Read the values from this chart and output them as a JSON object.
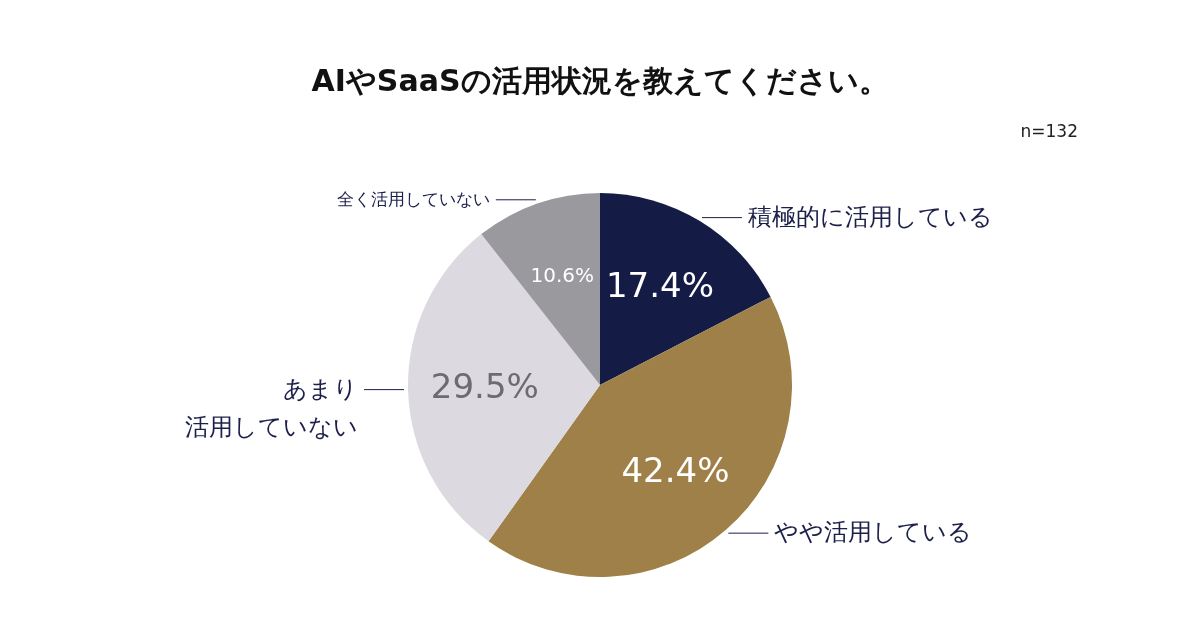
{
  "chart_data": {
    "type": "pie",
    "title": "AIやSaaSの活用状況を教えてください。",
    "annotations": [
      "n=132"
    ],
    "categories": [
      "積極的に活用している",
      "やや活用している",
      "あまり活用していない",
      "全く活用していない"
    ],
    "values": [
      17.4,
      42.4,
      29.5,
      10.6
    ],
    "value_labels": [
      "17.4%",
      "42.4%",
      "29.5%",
      "10.6%"
    ],
    "colors": [
      "#141c45",
      "#9e8048",
      "#dcdae0",
      "#9a999e"
    ]
  }
}
